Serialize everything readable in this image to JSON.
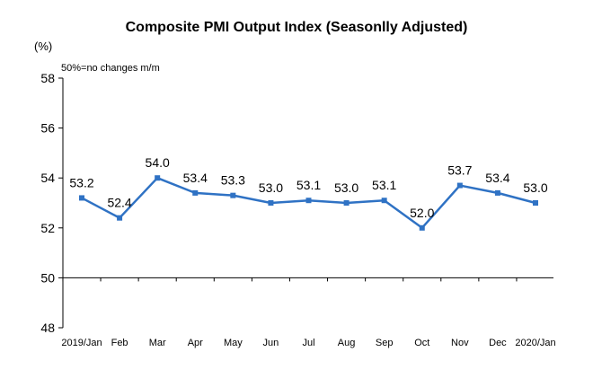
{
  "chart_data": {
    "type": "line",
    "title": "Composite PMI Output Index (Seasonlly Adjusted)",
    "unit_label": "(%)",
    "note": "50%=no changes m/m",
    "categories": [
      "2019/Jan",
      "Feb",
      "Mar",
      "Apr",
      "May",
      "Jun",
      "Jul",
      "Aug",
      "Sep",
      "Oct",
      "Nov",
      "Dec",
      "2020/Jan"
    ],
    "series": [
      {
        "values": [
          53.2,
          52.4,
          54.0,
          53.4,
          53.3,
          53.0,
          53.1,
          53.0,
          53.1,
          52.0,
          53.7,
          53.4,
          53.0
        ],
        "labels": [
          "53.2",
          "52.4",
          "54.0",
          "53.4",
          "53.3",
          "53.0",
          "53.1",
          "53.0",
          "53.1",
          "52.0",
          "53.7",
          "53.4",
          "53.0"
        ],
        "color": "#2f72c4"
      }
    ],
    "yticks": [
      "58",
      "56",
      "54",
      "52",
      "50",
      "48"
    ],
    "ylim": [
      48,
      58
    ],
    "reference_line": 50,
    "grid": false,
    "legend": "none"
  }
}
